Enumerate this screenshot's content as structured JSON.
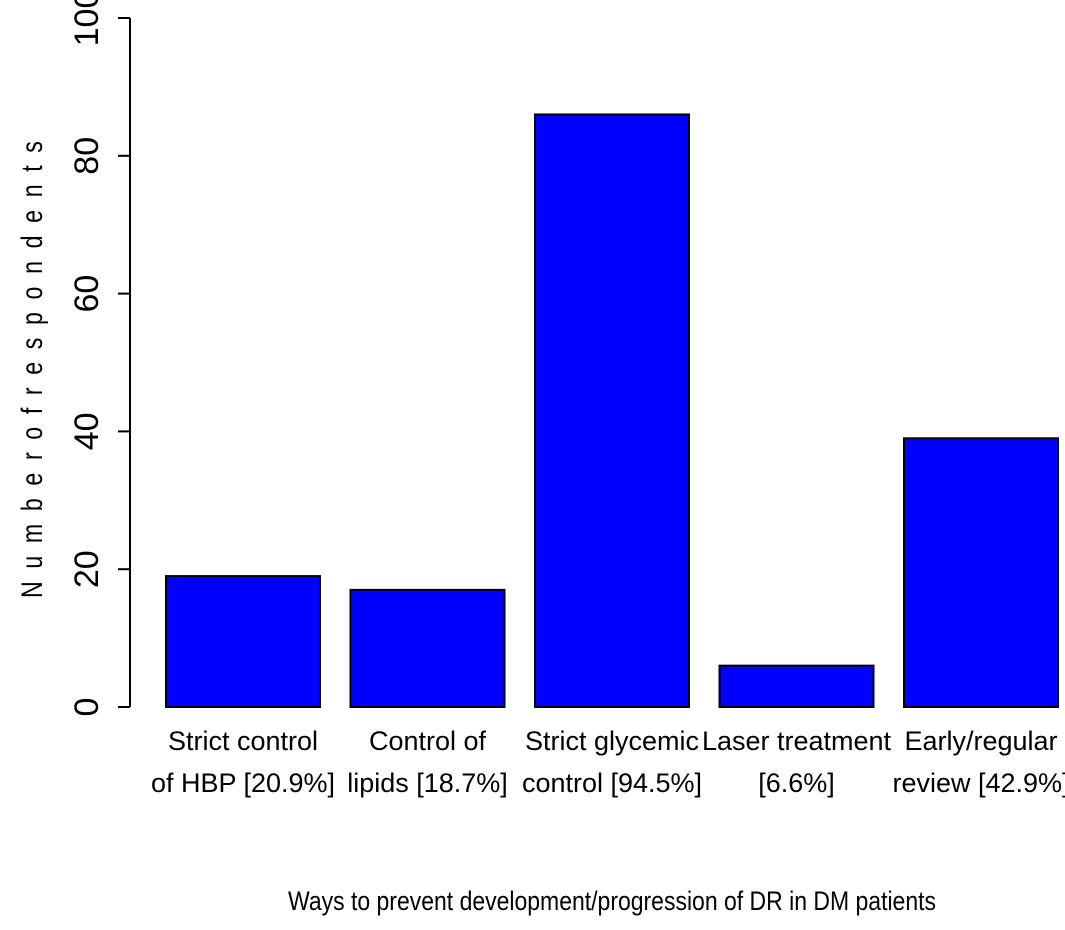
{
  "chart_data": {
    "type": "bar",
    "title": "",
    "xlabel": "Ways to prevent development/progression of DR in DM patients",
    "ylabel": "N u m b e r o f r e s p o n d e n t s",
    "ylim": [
      0,
      100
    ],
    "yticks": [
      0,
      20,
      40,
      60,
      80,
      100
    ],
    "grid": false,
    "categories": [
      [
        "Strict control",
        "of HBP  [20.9%]"
      ],
      [
        "Control of",
        "lipids [18.7%]"
      ],
      [
        "Strict glycemic",
        "control [94.5%]"
      ],
      [
        "Laser treatment",
        "[6.6%]"
      ],
      [
        "Early/regular",
        "review [42.9%]"
      ]
    ],
    "values": [
      19,
      17,
      86,
      6,
      39
    ],
    "bar_color": "#0000ff",
    "edge_color": "#000000"
  }
}
